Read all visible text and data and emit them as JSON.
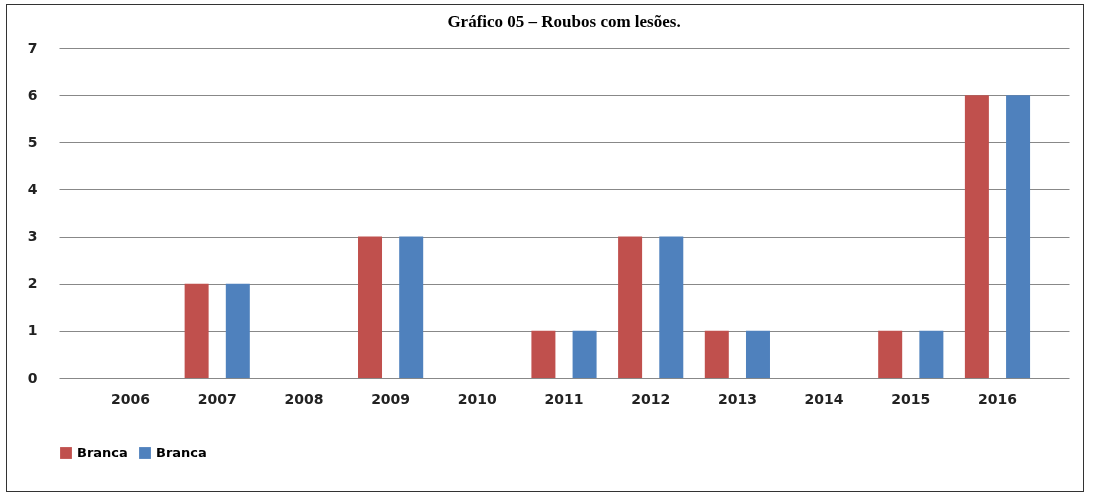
{
  "chart_data": {
    "type": "bar",
    "title": "Gráfico 05 – Roubos com lesões.",
    "categories": [
      "2006",
      "2007",
      "2008",
      "2009",
      "2010",
      "2011",
      "2012",
      "2013",
      "2014",
      "2015",
      "2016"
    ],
    "series": [
      {
        "name": "Branca",
        "color": "#c0504d",
        "values": [
          0,
          2,
          0,
          3,
          0,
          1,
          3,
          1,
          0,
          1,
          6
        ]
      },
      {
        "name": "Branca",
        "color": "#4f81bd",
        "values": [
          0,
          2,
          0,
          3,
          0,
          1,
          3,
          1,
          0,
          1,
          6
        ]
      }
    ],
    "ylim": [
      0,
      7
    ],
    "yticks": [
      0,
      1,
      2,
      3,
      4,
      5,
      6,
      7
    ],
    "grid": "y",
    "legend": "bottom"
  }
}
